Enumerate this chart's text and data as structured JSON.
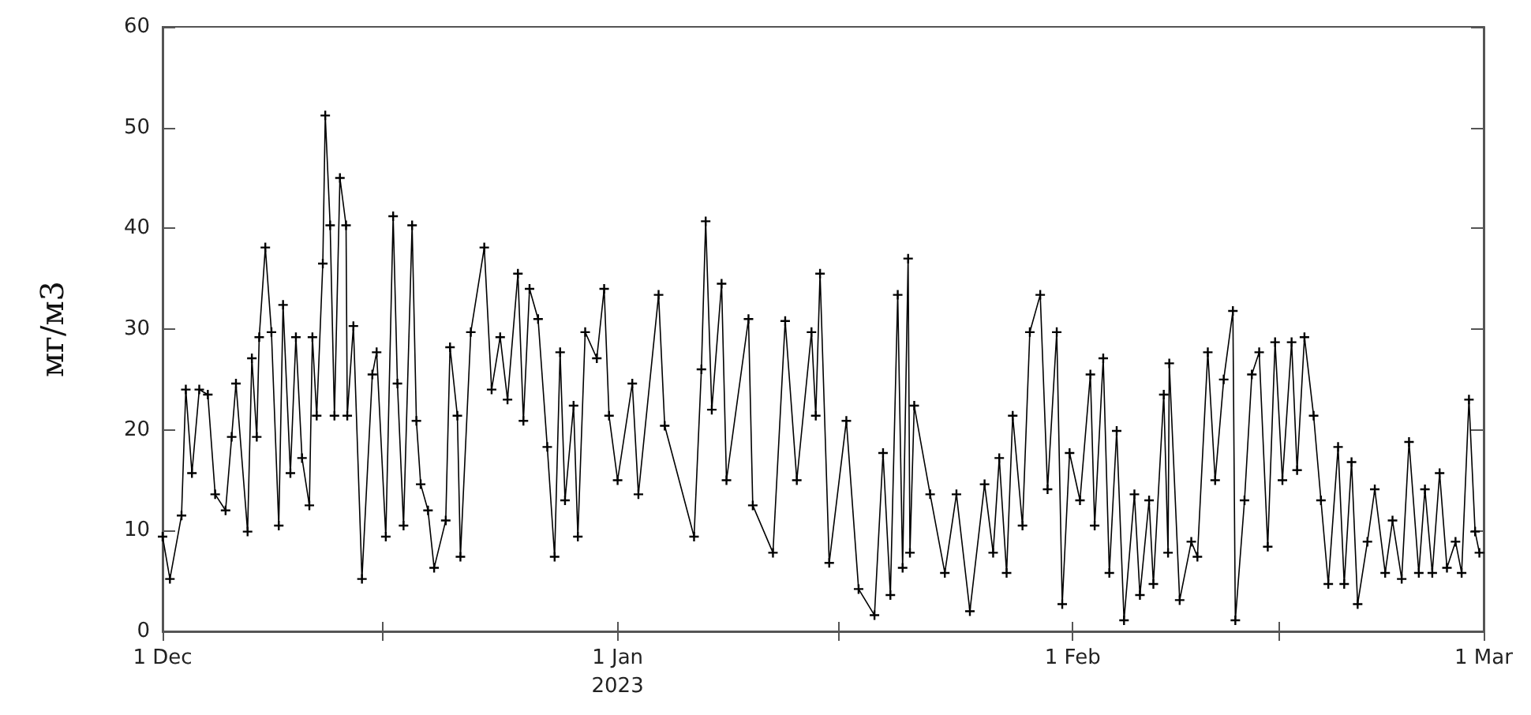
{
  "chart_data": {
    "type": "line",
    "ylabel": "мг/м3",
    "xlim": [
      "2022-12-01",
      "2023-03-01"
    ],
    "ylim": [
      0,
      60
    ],
    "yticks": [
      0,
      10,
      20,
      30,
      40,
      50,
      60
    ],
    "xticks": [
      {
        "value": "2022-12-01",
        "label": "1 Dec"
      },
      {
        "value": "2022-12-16",
        "label": null
      },
      {
        "value": "2023-01-01",
        "label": "1 Jan\n2023"
      },
      {
        "value": "2023-01-16",
        "label": null
      },
      {
        "value": "2023-02-01",
        "label": "1 Feb"
      },
      {
        "value": "2023-02-15",
        "label": null
      },
      {
        "value": "2023-03-01",
        "label": "1 Mar"
      }
    ],
    "grid": false,
    "marker": "cross",
    "line_style": "solid",
    "x": [
      "2022-12-01T00:00",
      "2022-12-01T12:00",
      "2022-12-02T07:00",
      "2022-12-02T14:00",
      "2022-12-03T00:00",
      "2022-12-03T12:00",
      "2022-12-04T02:00",
      "2022-12-04T14:00",
      "2022-12-05T07:00",
      "2022-12-05T17:00",
      "2022-12-06T00:00",
      "2022-12-06T19:00",
      "2022-12-07T02:00",
      "2022-12-07T10:00",
      "2022-12-07T14:00",
      "2022-12-08T00:00",
      "2022-12-08T10:00",
      "2022-12-08T22:00",
      "2022-12-09T05:00",
      "2022-12-09T17:00",
      "2022-12-10T02:00",
      "2022-12-10T12:00",
      "2022-12-11T00:00",
      "2022-12-11T05:00",
      "2022-12-11T12:00",
      "2022-12-11T22:00",
      "2022-12-12T02:00",
      "2022-12-12T10:00",
      "2022-12-12T17:00",
      "2022-12-13T02:00",
      "2022-12-13T12:00",
      "2022-12-13T14:00",
      "2022-12-14T00:00",
      "2022-12-14T14:00",
      "2022-12-15T07:00",
      "2022-12-15T14:00",
      "2022-12-16T05:00",
      "2022-12-16T17:00",
      "2022-12-17T00:00",
      "2022-12-17T10:00",
      "2022-12-18T00:00",
      "2022-12-18T07:00",
      "2022-12-18T14:00",
      "2022-12-19T02:00",
      "2022-12-19T12:00",
      "2022-12-20T07:00",
      "2022-12-20T14:00",
      "2022-12-21T02:00",
      "2022-12-21T07:00",
      "2022-12-22T00:00",
      "2022-12-22T22:00",
      "2022-12-23T10:00",
      "2022-12-24T00:00",
      "2022-12-24T12:00",
      "2022-12-25T05:00",
      "2022-12-25T14:00",
      "2022-12-26T00:00",
      "2022-12-26T14:00",
      "2022-12-27T05:00",
      "2022-12-27T17:00",
      "2022-12-28T02:00",
      "2022-12-28T10:00",
      "2022-12-29T00:00",
      "2022-12-29T07:00",
      "2022-12-29T19:00",
      "2022-12-30T14:00",
      "2022-12-31T02:00",
      "2022-12-31T10:00",
      "2023-01-01T00:00",
      "2023-01-02T00:00",
      "2023-01-02T10:00",
      "2023-01-03T19:00",
      "2023-01-04T05:00",
      "2023-01-06T05:00",
      "2023-01-06T17:00",
      "2023-01-07T00:00",
      "2023-01-07T10:00",
      "2023-01-08T02:00",
      "2023-01-08T10:00",
      "2023-01-09T22:00",
      "2023-01-10T05:00",
      "2023-01-11T14:00",
      "2023-01-12T10:00",
      "2023-01-13T05:00",
      "2023-01-14T05:00",
      "2023-01-14T12:00",
      "2023-01-14T19:00",
      "2023-01-15T10:00",
      "2023-01-16T14:00",
      "2023-01-17T10:00",
      "2023-01-18T12:00",
      "2023-01-19T02:00",
      "2023-01-19T14:00",
      "2023-01-20T02:00",
      "2023-01-20T10:00",
      "2023-01-20T19:00",
      "2023-01-20T22:00",
      "2023-01-21T05:00",
      "2023-01-22T07:00",
      "2023-01-23T07:00",
      "2023-01-24T02:00",
      "2023-01-25T00:00",
      "2023-01-26T00:00",
      "2023-01-26T14:00",
      "2023-01-27T00:00",
      "2023-01-27T12:00",
      "2023-01-27T22:00",
      "2023-01-28T14:00",
      "2023-01-29T02:00",
      "2023-01-29T19:00",
      "2023-01-30T07:00",
      "2023-01-30T22:00",
      "2023-01-31T07:00",
      "2023-01-31T19:00",
      "2023-02-01T12:00",
      "2023-02-02T05:00",
      "2023-02-02T12:00",
      "2023-02-03T02:00",
      "2023-02-03T12:00",
      "2023-02-04T00:00",
      "2023-02-04T12:00",
      "2023-02-05T05:00",
      "2023-02-05T14:00",
      "2023-02-06T05:00",
      "2023-02-06T12:00",
      "2023-02-07T05:00",
      "2023-02-07T12:00",
      "2023-02-07T14:00",
      "2023-02-08T07:00",
      "2023-02-09T02:00",
      "2023-02-09T12:00",
      "2023-02-10T05:00",
      "2023-02-10T17:00",
      "2023-02-11T07:00",
      "2023-02-11T22:00",
      "2023-02-12T02:00",
      "2023-02-12T17:00",
      "2023-02-13T05:00",
      "2023-02-13T17:00",
      "2023-02-14T07:00",
      "2023-02-14T19:00",
      "2023-02-15T07:00",
      "2023-02-15T22:00",
      "2023-02-16T07:00",
      "2023-02-16T19:00",
      "2023-02-17T10:00",
      "2023-02-17T22:00",
      "2023-02-18T10:00",
      "2023-02-19T02:00",
      "2023-02-19T12:00",
      "2023-02-20T00:00",
      "2023-02-20T10:00",
      "2023-02-21T02:00",
      "2023-02-21T14:00",
      "2023-02-22T07:00",
      "2023-02-22T19:00",
      "2023-02-23T10:00",
      "2023-02-23T22:00",
      "2023-02-24T14:00",
      "2023-02-25T00:00",
      "2023-02-25T12:00",
      "2023-02-26T00:00",
      "2023-02-26T12:00",
      "2023-02-27T02:00",
      "2023-02-27T12:00",
      "2023-02-28T00:00",
      "2023-02-28T10:00",
      "2023-02-28T17:00"
    ],
    "series": [
      {
        "color": "#000000",
        "values": [
          9.4,
          5.2,
          11.5,
          24,
          15.7,
          24,
          23.5,
          13.6,
          12,
          19.3,
          24.6,
          9.9,
          27.1,
          19.3,
          29.2,
          38.1,
          29.7,
          10.5,
          32.4,
          15.7,
          29.2,
          17.2,
          12.5,
          29.2,
          21.4,
          36.5,
          51.2,
          40.3,
          21.4,
          45,
          40.3,
          21.4,
          30.3,
          5.2,
          25.5,
          27.7,
          9.4,
          41.2,
          24.6,
          10.5,
          40.3,
          20.9,
          14.6,
          12,
          6.3,
          11,
          28.2,
          21.4,
          7.4,
          29.7,
          38.1,
          24,
          29.2,
          23,
          35.5,
          20.9,
          34,
          31,
          18.3,
          7.4,
          27.7,
          13,
          22.4,
          9.4,
          29.7,
          27.1,
          34,
          21.4,
          15,
          24.6,
          13.6,
          33.4,
          20.4,
          9.4,
          26,
          40.7,
          22,
          34.5,
          15,
          31,
          12.5,
          7.8,
          30.8,
          15,
          29.7,
          21.4,
          35.5,
          6.8,
          20.9,
          4.2,
          1.6,
          17.7,
          3.6,
          33.4,
          6.3,
          37,
          7.8,
          22.4,
          13.6,
          5.8,
          13.6,
          2,
          14.6,
          7.8,
          17.2,
          5.8,
          21.4,
          10.5,
          29.7,
          33.4,
          14.1,
          29.7,
          2.7,
          17.7,
          13,
          25.5,
          10.5,
          27.1,
          5.8,
          19.9,
          1.1,
          13.6,
          3.6,
          13,
          4.7,
          23.5,
          7.8,
          26.6,
          3.1,
          8.9,
          7.4,
          27.7,
          15,
          25,
          31.8,
          1.1,
          13,
          25.5,
          27.7,
          8.4,
          28.7,
          15,
          28.7,
          16,
          29.2,
          21.4,
          13,
          4.7,
          18.3,
          4.7,
          16.8,
          2.7,
          8.9,
          14.1,
          5.8,
          11,
          5.2,
          18.8,
          5.8,
          14.1,
          5.8,
          15.7,
          6.3,
          8.9,
          5.8,
          23,
          9.9,
          7.8
        ]
      }
    ]
  }
}
